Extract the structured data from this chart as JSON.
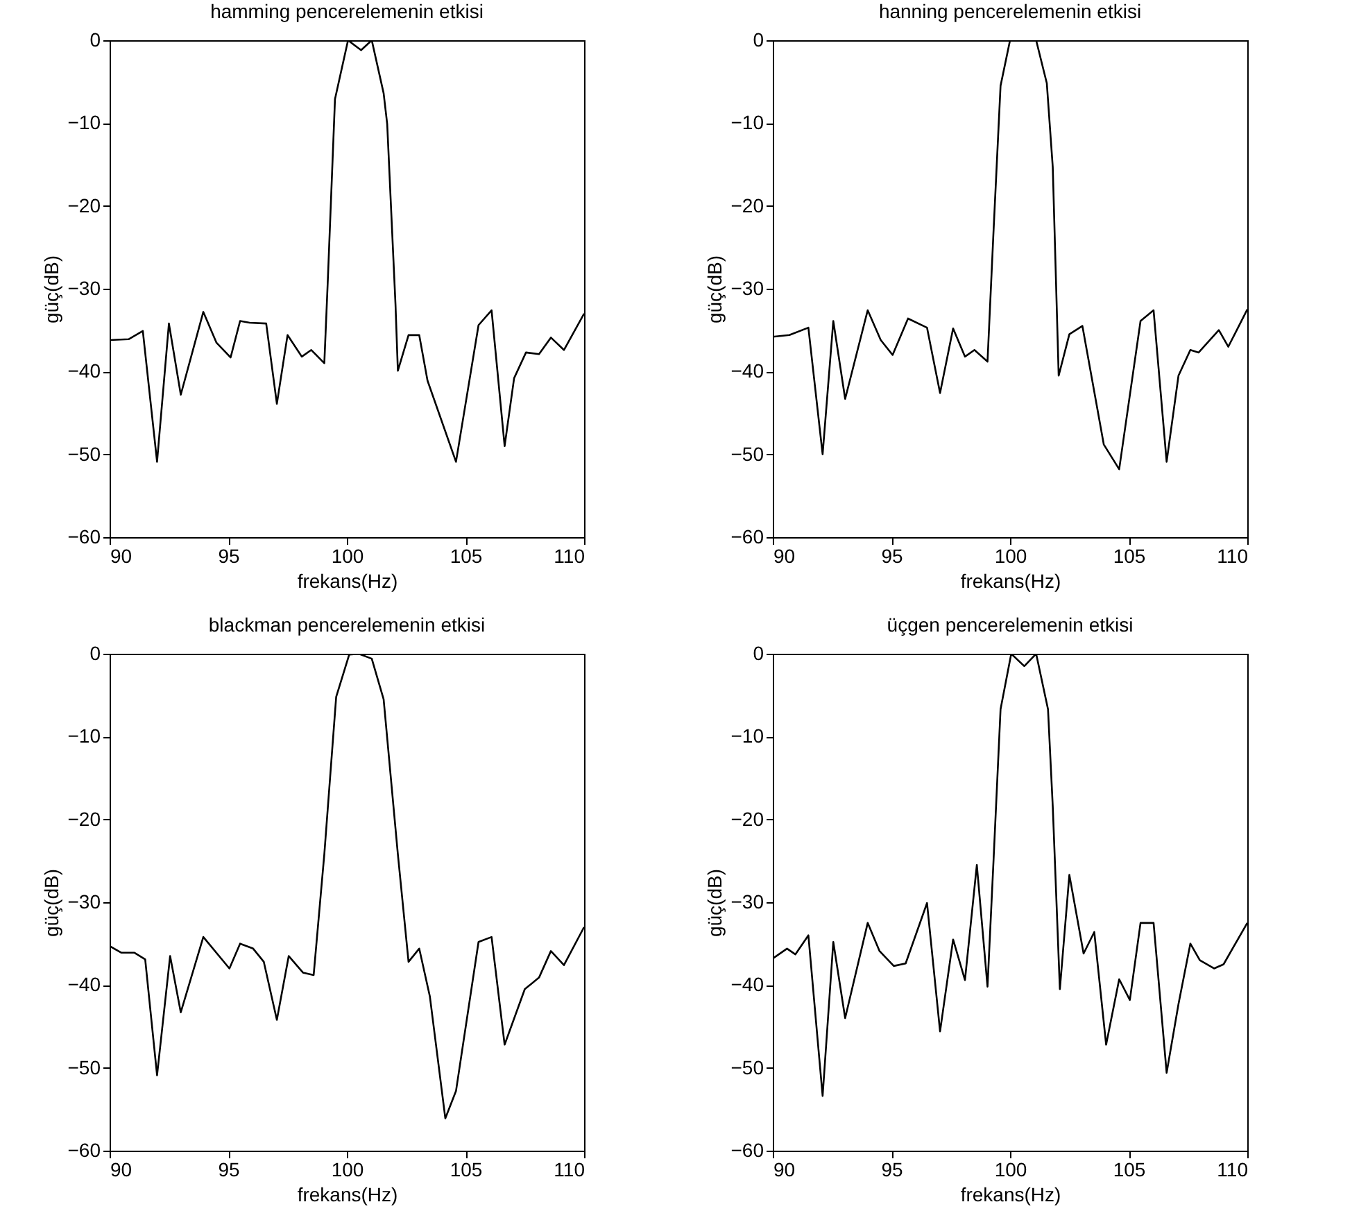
{
  "chart_data": [
    {
      "type": "line",
      "title": "hamming pencerelemenin etkisi",
      "xlabel": "frekans(Hz)",
      "ylabel": "güç(dB)",
      "xlim": [
        90,
        110
      ],
      "ylim": [
        -60,
        0
      ],
      "xticks": [
        90,
        95,
        100,
        105,
        110
      ],
      "yticks": [
        -60,
        -50,
        -40,
        -30,
        -20,
        -10,
        0
      ],
      "series": [
        {
          "color": "#000000",
          "x": [
            90,
            90.8,
            91.4,
            92,
            92.5,
            93,
            93.95,
            94.5,
            95.1,
            95.5,
            95.9,
            96.6,
            97.05,
            97.5,
            98.1,
            98.5,
            99.05,
            99.2,
            99.5,
            100.05,
            100.6,
            101.05,
            101.55,
            101.7,
            102.05,
            102.15,
            102.6,
            103.05,
            103.4,
            104.6,
            105.55,
            106.1,
            106.65,
            107.05,
            107.55,
            108.1,
            108.6,
            109.15,
            110
          ],
          "values": [
            -36.2,
            -36.1,
            -35.1,
            -50.9,
            -34.2,
            -42.8,
            -32.8,
            -36.5,
            -38.3,
            -33.9,
            -34.1,
            -34.2,
            -43.9,
            -35.6,
            -38.2,
            -37.4,
            -39,
            -28.8,
            -7.1,
            0,
            -1.2,
            0,
            -6.4,
            -10.1,
            -31.9,
            -39.9,
            -35.6,
            -35.6,
            -41.1,
            -50.9,
            -34.4,
            -32.6,
            -49,
            -40.8,
            -37.7,
            -37.9,
            -35.9,
            -37.4,
            -33
          ]
        }
      ]
    },
    {
      "type": "line",
      "title": "hanning pencerelemenin etkisi",
      "xlabel": "frekans(Hz)",
      "ylabel": "güç(dB)",
      "xlim": [
        90,
        110
      ],
      "ylim": [
        -60,
        0
      ],
      "xticks": [
        90,
        95,
        100,
        105,
        110
      ],
      "yticks": [
        -60,
        -50,
        -40,
        -30,
        -20,
        -10,
        0
      ],
      "series": [
        {
          "color": "#000000",
          "x": [
            90,
            90.7,
            91.5,
            92.1,
            92.55,
            93.05,
            94,
            94.55,
            95.05,
            95.7,
            96.5,
            97.05,
            97.6,
            98.1,
            98.5,
            99.05,
            99.3,
            99.6,
            100,
            101.1,
            101.55,
            101.8,
            102.05,
            102.5,
            103.05,
            103.95,
            104.6,
            105.5,
            106.05,
            106.6,
            107.1,
            107.6,
            107.95,
            108.8,
            109.2,
            110
          ],
          "values": [
            -35.8,
            -35.6,
            -34.7,
            -50,
            -33.9,
            -43.3,
            -32.6,
            -36.2,
            -38,
            -33.6,
            -34.7,
            -42.6,
            -34.8,
            -38.2,
            -37.4,
            -38.8,
            -23.3,
            -5.5,
            0,
            0,
            -5.2,
            -15.3,
            -40.5,
            -35.5,
            -34.5,
            -48.8,
            -51.8,
            -33.9,
            -32.6,
            -50.9,
            -40.5,
            -37.4,
            -37.7,
            -35,
            -37,
            -32.5
          ]
        }
      ]
    },
    {
      "type": "line",
      "title": "blackman pencerelemenin etkisi",
      "xlabel": "frekans(Hz)",
      "ylabel": "güç(dB)",
      "xlim": [
        90,
        110
      ],
      "ylim": [
        -60,
        0
      ],
      "xticks": [
        90,
        95,
        100,
        105,
        110
      ],
      "yticks": [
        -60,
        -50,
        -40,
        -30,
        -20,
        -10,
        0
      ],
      "series": [
        {
          "color": "#000000",
          "x": [
            90,
            90.5,
            91.05,
            91.5,
            92,
            92.55,
            93,
            93.95,
            95.05,
            95.5,
            96.05,
            96.5,
            97.05,
            97.55,
            98.15,
            98.6,
            99.05,
            99.55,
            100.1,
            100.5,
            101.05,
            101.55,
            102.15,
            102.6,
            103.05,
            103.5,
            104.15,
            104.6,
            105.55,
            106.1,
            106.65,
            107.5,
            108.1,
            108.6,
            109.15,
            110
          ],
          "values": [
            -35.3,
            -36.1,
            -36.1,
            -36.9,
            -50.9,
            -36.5,
            -43.3,
            -34.2,
            -38,
            -35,
            -35.6,
            -37.2,
            -44.2,
            -36.5,
            -38.5,
            -38.8,
            -24.2,
            -5.2,
            -0.1,
            0,
            -0.6,
            -5.5,
            -24.2,
            -37.2,
            -35.6,
            -41.4,
            -56.1,
            -52.8,
            -34.8,
            -34.2,
            -47.2,
            -40.5,
            -39.1,
            -35.9,
            -37.6,
            -33
          ]
        }
      ]
    },
    {
      "type": "line",
      "title": "üçgen pencerelemenin etkisi",
      "xlabel": "frekans(Hz)",
      "ylabel": "güç(dB)",
      "xlim": [
        90,
        110
      ],
      "ylim": [
        -60,
        0
      ],
      "xticks": [
        90,
        95,
        100,
        105,
        110
      ],
      "yticks": [
        -60,
        -50,
        -40,
        -30,
        -20,
        -10,
        0
      ],
      "series": [
        {
          "color": "#000000",
          "x": [
            90,
            90.6,
            90.95,
            91.5,
            92.1,
            92.55,
            93.05,
            94,
            94.5,
            95.1,
            95.6,
            96.5,
            97.05,
            97.6,
            98.1,
            98.6,
            99.05,
            99.3,
            99.6,
            100.05,
            100.6,
            101.1,
            101.6,
            101.8,
            102.1,
            102.5,
            103.1,
            103.55,
            104.05,
            104.6,
            105.05,
            105.5,
            106.05,
            106.6,
            107.1,
            107.6,
            108,
            108.6,
            109,
            110
          ],
          "values": [
            -36.8,
            -35.6,
            -36.3,
            -34,
            -53.4,
            -34.8,
            -44,
            -32.5,
            -35.9,
            -37.7,
            -37.4,
            -30.1,
            -45.6,
            -34.5,
            -39.4,
            -25.5,
            -40.2,
            -25.2,
            -6.7,
            0,
            -1.5,
            0,
            -6.7,
            -18.4,
            -40.5,
            -26.7,
            -36.2,
            -33.6,
            -47.2,
            -39.3,
            -41.8,
            -32.5,
            -32.5,
            -50.6,
            -42.3,
            -35,
            -37,
            -38,
            -37.5,
            -32.5
          ]
        }
      ]
    }
  ]
}
